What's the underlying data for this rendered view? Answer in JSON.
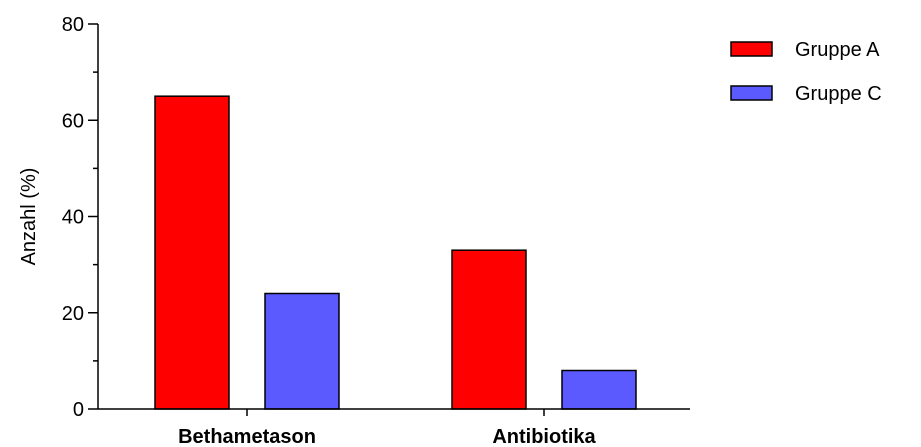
{
  "chart_data": {
    "type": "bar",
    "title": "",
    "xlabel": "",
    "ylabel": "Anzahl  (%)",
    "ylim": [
      0,
      80
    ],
    "yticks": [
      0,
      20,
      40,
      60,
      80
    ],
    "categories": [
      "Bethametason",
      "Antibiotika"
    ],
    "series": [
      {
        "name": "Gruppe A",
        "color": "#ff0000",
        "values": [
          65,
          33
        ]
      },
      {
        "name": "Gruppe C",
        "color": "#5a5aff",
        "values": [
          24,
          8
        ]
      }
    ],
    "grid": false,
    "legend": "top-right"
  }
}
